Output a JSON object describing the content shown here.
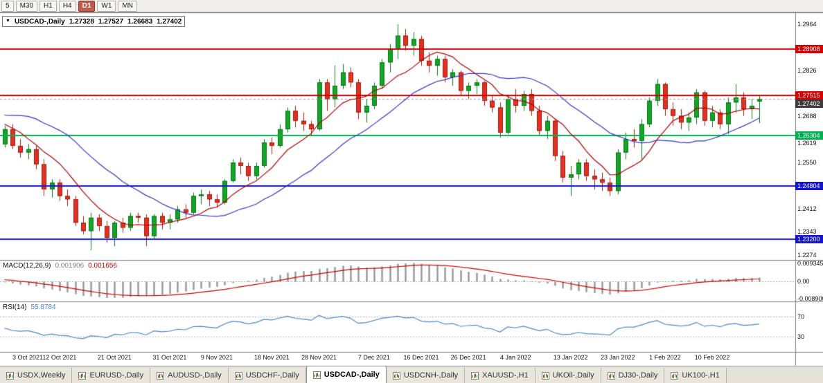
{
  "toolbar": {
    "periods": [
      {
        "label": "5",
        "active": false
      },
      {
        "label": "M30",
        "active": false
      },
      {
        "label": "H1",
        "active": false
      },
      {
        "label": "H4",
        "active": false
      },
      {
        "label": "D1",
        "active": true
      },
      {
        "label": "W1",
        "active": false
      },
      {
        "label": "MN",
        "active": false
      }
    ]
  },
  "chart": {
    "header": {
      "collapse_arrow": "▼",
      "symbol": "USDCAD-,Daily",
      "open": "1.27328",
      "high": "1.27527",
      "low": "1.26683",
      "close": "1.27402"
    }
  },
  "chart_data": {
    "type": "candlestick",
    "title": "USDCAD-,Daily",
    "price_axis": {
      "min": 1.22585,
      "max": 1.29995,
      "first_tick": 1.2274,
      "tick_step": 0.0069,
      "tick_count": 11,
      "decimals": 4
    },
    "levels": [
      {
        "value": 1.28908,
        "label": "1.28908",
        "color": "#D40000"
      },
      {
        "value": 1.27515,
        "label": "1.27515",
        "color": "#D40000"
      },
      {
        "value": 1.26304,
        "label": "1.26304",
        "color": "#00B050"
      },
      {
        "value": 1.24804,
        "label": "1.24804",
        "color": "#1414CC"
      },
      {
        "value": 1.232,
        "label": "1.23200",
        "color": "#1414CC"
      }
    ],
    "current_price": {
      "value": 1.27402,
      "label": "1.27402",
      "color": "#3C3C3C"
    },
    "candle_colors": {
      "bull": "#14A526",
      "bull_border": "#0B7218",
      "bear": "#E03224",
      "bear_border": "#9C1C10"
    },
    "moving_averages": [
      {
        "type": "sma",
        "period": 8,
        "color": "#B40000"
      },
      {
        "type": "sma",
        "period": 20,
        "color": "#3333C8"
      }
    ],
    "preload_closes": [
      1.2655,
      1.263,
      1.26,
      1.262,
      1.265,
      1.268,
      1.264,
      1.262,
      1.259,
      1.264,
      1.269,
      1.272,
      1.27,
      1.268,
      1.272,
      1.2765,
      1.282,
      1.281,
      1.2765,
      1.27,
      1.268,
      1.2745,
      1.2685,
      1.264,
      1.2618,
      1.2605
    ],
    "candles": [
      [
        1.2605,
        1.266,
        1.2595,
        1.265
      ],
      [
        1.265,
        1.2665,
        1.259,
        1.26
      ],
      [
        1.26,
        1.262,
        1.2565,
        1.258
      ],
      [
        1.258,
        1.2605,
        1.256,
        1.259
      ],
      [
        1.259,
        1.26,
        1.253,
        1.2545
      ],
      [
        1.2545,
        1.256,
        1.245,
        1.247
      ],
      [
        1.247,
        1.25,
        1.2445,
        1.249
      ],
      [
        1.249,
        1.25,
        1.2435,
        1.245
      ],
      [
        1.245,
        1.247,
        1.242,
        1.244
      ],
      [
        1.244,
        1.245,
        1.236,
        1.237
      ],
      [
        1.237,
        1.239,
        1.2335,
        1.2345
      ],
      [
        1.2345,
        1.24,
        1.2288,
        1.2385
      ],
      [
        1.2385,
        1.2395,
        1.2345,
        1.236
      ],
      [
        1.236,
        1.2375,
        1.231,
        1.2325
      ],
      [
        1.2325,
        1.2375,
        1.23,
        1.237
      ],
      [
        1.237,
        1.2385,
        1.234,
        1.2355
      ],
      [
        1.2355,
        1.24,
        1.2345,
        1.239
      ],
      [
        1.239,
        1.24,
        1.237,
        1.2385
      ],
      [
        1.2385,
        1.2395,
        1.23,
        1.233
      ],
      [
        1.233,
        1.2395,
        1.232,
        1.239
      ],
      [
        1.239,
        1.24,
        1.235,
        1.237
      ],
      [
        1.237,
        1.2395,
        1.235,
        1.238
      ],
      [
        1.238,
        1.242,
        1.237,
        1.241
      ],
      [
        1.241,
        1.2425,
        1.2385,
        1.24
      ],
      [
        1.24,
        1.246,
        1.2395,
        1.245
      ],
      [
        1.245,
        1.247,
        1.2425,
        1.2455
      ],
      [
        1.2455,
        1.2465,
        1.242,
        1.244
      ],
      [
        1.244,
        1.2455,
        1.2415,
        1.243
      ],
      [
        1.243,
        1.25,
        1.2425,
        1.2495
      ],
      [
        1.2495,
        1.256,
        1.249,
        1.255
      ],
      [
        1.255,
        1.2565,
        1.2515,
        1.254
      ],
      [
        1.254,
        1.255,
        1.2495,
        1.251
      ],
      [
        1.251,
        1.255,
        1.25,
        1.254
      ],
      [
        1.254,
        1.262,
        1.2535,
        1.261
      ],
      [
        1.261,
        1.2625,
        1.2575,
        1.26
      ],
      [
        1.26,
        1.2665,
        1.2595,
        1.265
      ],
      [
        1.265,
        1.2715,
        1.264,
        1.2705
      ],
      [
        1.2705,
        1.272,
        1.2655,
        1.2675
      ],
      [
        1.2675,
        1.27,
        1.2645,
        1.2665
      ],
      [
        1.2665,
        1.2675,
        1.263,
        1.265
      ],
      [
        1.265,
        1.28,
        1.2645,
        1.279
      ],
      [
        1.279,
        1.28,
        1.2705,
        1.274
      ],
      [
        1.274,
        1.284,
        1.2715,
        1.278
      ],
      [
        1.278,
        1.2845,
        1.277,
        1.282
      ],
      [
        1.282,
        1.2835,
        1.2775,
        1.279
      ],
      [
        1.279,
        1.28,
        1.268,
        1.27
      ],
      [
        1.27,
        1.274,
        1.267,
        1.272
      ],
      [
        1.272,
        1.279,
        1.271,
        1.278
      ],
      [
        1.278,
        1.286,
        1.277,
        1.285
      ],
      [
        1.285,
        1.2905,
        1.282,
        1.289
      ],
      [
        1.289,
        1.2964,
        1.286,
        1.293
      ],
      [
        1.293,
        1.295,
        1.2885,
        1.29
      ],
      [
        1.29,
        1.294,
        1.287,
        1.292
      ],
      [
        1.292,
        1.293,
        1.284,
        1.2855
      ],
      [
        1.2855,
        1.288,
        1.282,
        1.284
      ],
      [
        1.284,
        1.287,
        1.281,
        1.286
      ],
      [
        1.286,
        1.287,
        1.279,
        1.2805
      ],
      [
        1.2805,
        1.283,
        1.278,
        1.282
      ],
      [
        1.282,
        1.2825,
        1.275,
        1.2765
      ],
      [
        1.2765,
        1.279,
        1.274,
        1.278
      ],
      [
        1.278,
        1.28,
        1.2755,
        1.279
      ],
      [
        1.279,
        1.2795,
        1.272,
        1.2735
      ],
      [
        1.2735,
        1.275,
        1.27,
        1.2715
      ],
      [
        1.2715,
        1.273,
        1.2625,
        1.264
      ],
      [
        1.264,
        1.275,
        1.2635,
        1.274
      ],
      [
        1.274,
        1.277,
        1.27,
        1.272
      ],
      [
        1.272,
        1.2765,
        1.2705,
        1.2755
      ],
      [
        1.2755,
        1.277,
        1.269,
        1.2705
      ],
      [
        1.2705,
        1.272,
        1.263,
        1.2645
      ],
      [
        1.2645,
        1.269,
        1.262,
        1.2675
      ],
      [
        1.2675,
        1.268,
        1.2555,
        1.257
      ],
      [
        1.257,
        1.2585,
        1.249,
        1.2505
      ],
      [
        1.2505,
        1.254,
        1.245,
        1.2515
      ],
      [
        1.2515,
        1.256,
        1.25,
        1.255
      ],
      [
        1.255,
        1.256,
        1.2495,
        1.251
      ],
      [
        1.251,
        1.253,
        1.247,
        1.25
      ],
      [
        1.25,
        1.252,
        1.2465,
        1.249
      ],
      [
        1.249,
        1.2505,
        1.245,
        1.2465
      ],
      [
        1.2465,
        1.259,
        1.2455,
        1.258
      ],
      [
        1.258,
        1.264,
        1.256,
        1.262
      ],
      [
        1.262,
        1.265,
        1.2595,
        1.2615
      ],
      [
        1.2615,
        1.268,
        1.256,
        1.2665
      ],
      [
        1.2665,
        1.2745,
        1.2655,
        1.2735
      ],
      [
        1.2735,
        1.28,
        1.272,
        1.2785
      ],
      [
        1.2785,
        1.279,
        1.269,
        1.271
      ],
      [
        1.271,
        1.273,
        1.266,
        1.269
      ],
      [
        1.269,
        1.271,
        1.265,
        1.267
      ],
      [
        1.267,
        1.27,
        1.2645,
        1.2685
      ],
      [
        1.2685,
        1.277,
        1.2665,
        1.276
      ],
      [
        1.276,
        1.2765,
        1.266,
        1.2675
      ],
      [
        1.2675,
        1.272,
        1.2655,
        1.27
      ],
      [
        1.27,
        1.271,
        1.265,
        1.2665
      ],
      [
        1.2665,
        1.2745,
        1.2635,
        1.273
      ],
      [
        1.273,
        1.2785,
        1.27,
        1.2745
      ],
      [
        1.2745,
        1.276,
        1.269,
        1.271
      ],
      [
        1.271,
        1.274,
        1.268,
        1.272
      ],
      [
        1.27328,
        1.27527,
        1.26683,
        1.27402
      ]
    ],
    "date_labels": [
      {
        "text": "3 Oct 2021",
        "i": 1
      },
      {
        "text": "12 Oct 2021",
        "i": 7
      },
      {
        "text": "21 Oct 2021",
        "i": 14
      },
      {
        "text": "31 Oct 2021",
        "i": 21
      },
      {
        "text": "9 Nov 2021",
        "i": 27
      },
      {
        "text": "18 Nov 2021",
        "i": 34
      },
      {
        "text": "28 Nov 2021",
        "i": 40
      },
      {
        "text": "7 Dec 2021",
        "i": 47
      },
      {
        "text": "16 Dec 2021",
        "i": 53
      },
      {
        "text": "26 Dec 2021",
        "i": 59
      },
      {
        "text": "4 Jan 2022",
        "i": 65
      },
      {
        "text": "13 Jan 2022",
        "i": 72
      },
      {
        "text": "23 Jan 2022",
        "i": 78
      },
      {
        "text": "1 Feb 2022",
        "i": 84
      },
      {
        "text": "10 Feb 2022",
        "i": 90
      }
    ],
    "macd": {
      "name": "MACD(12,26,9)",
      "fast": 12,
      "slow": 26,
      "signal": 9,
      "value_main": "0.001906",
      "value_signal": "0.001656",
      "axis_labels": [
        {
          "value": 0.009345,
          "label": "0.009345"
        },
        {
          "value": 0,
          "label": "0.00"
        },
        {
          "value": -0.0089,
          "label": "-0.008900"
        }
      ],
      "range": {
        "min": -0.0104,
        "max": 0.0111
      },
      "hist_color": "#9A9A9A",
      "signal_color": "#C80000"
    },
    "rsi": {
      "name": "RSI(14)",
      "period": 14,
      "value": "55.8784",
      "levels": [
        70,
        30
      ],
      "color": "#4A86C8",
      "range": {
        "min": 0,
        "max": 100
      }
    }
  },
  "bottom_tabs": [
    {
      "label": "USDX,Weekly",
      "active": false
    },
    {
      "label": "EURUSD-,Daily",
      "active": false
    },
    {
      "label": "AUDUSD-,Daily",
      "active": false
    },
    {
      "label": "USDCHF-,Daily",
      "active": false
    },
    {
      "label": "USDCAD-,Daily",
      "active": true
    },
    {
      "label": "USDCNH-,Daily",
      "active": false
    },
    {
      "label": "XAUUSD-,H1",
      "active": false
    },
    {
      "label": "UKOil-,Daily",
      "active": false
    },
    {
      "label": "DJ30-,Daily",
      "active": false
    },
    {
      "label": "UK100-,H1",
      "active": false
    }
  ]
}
